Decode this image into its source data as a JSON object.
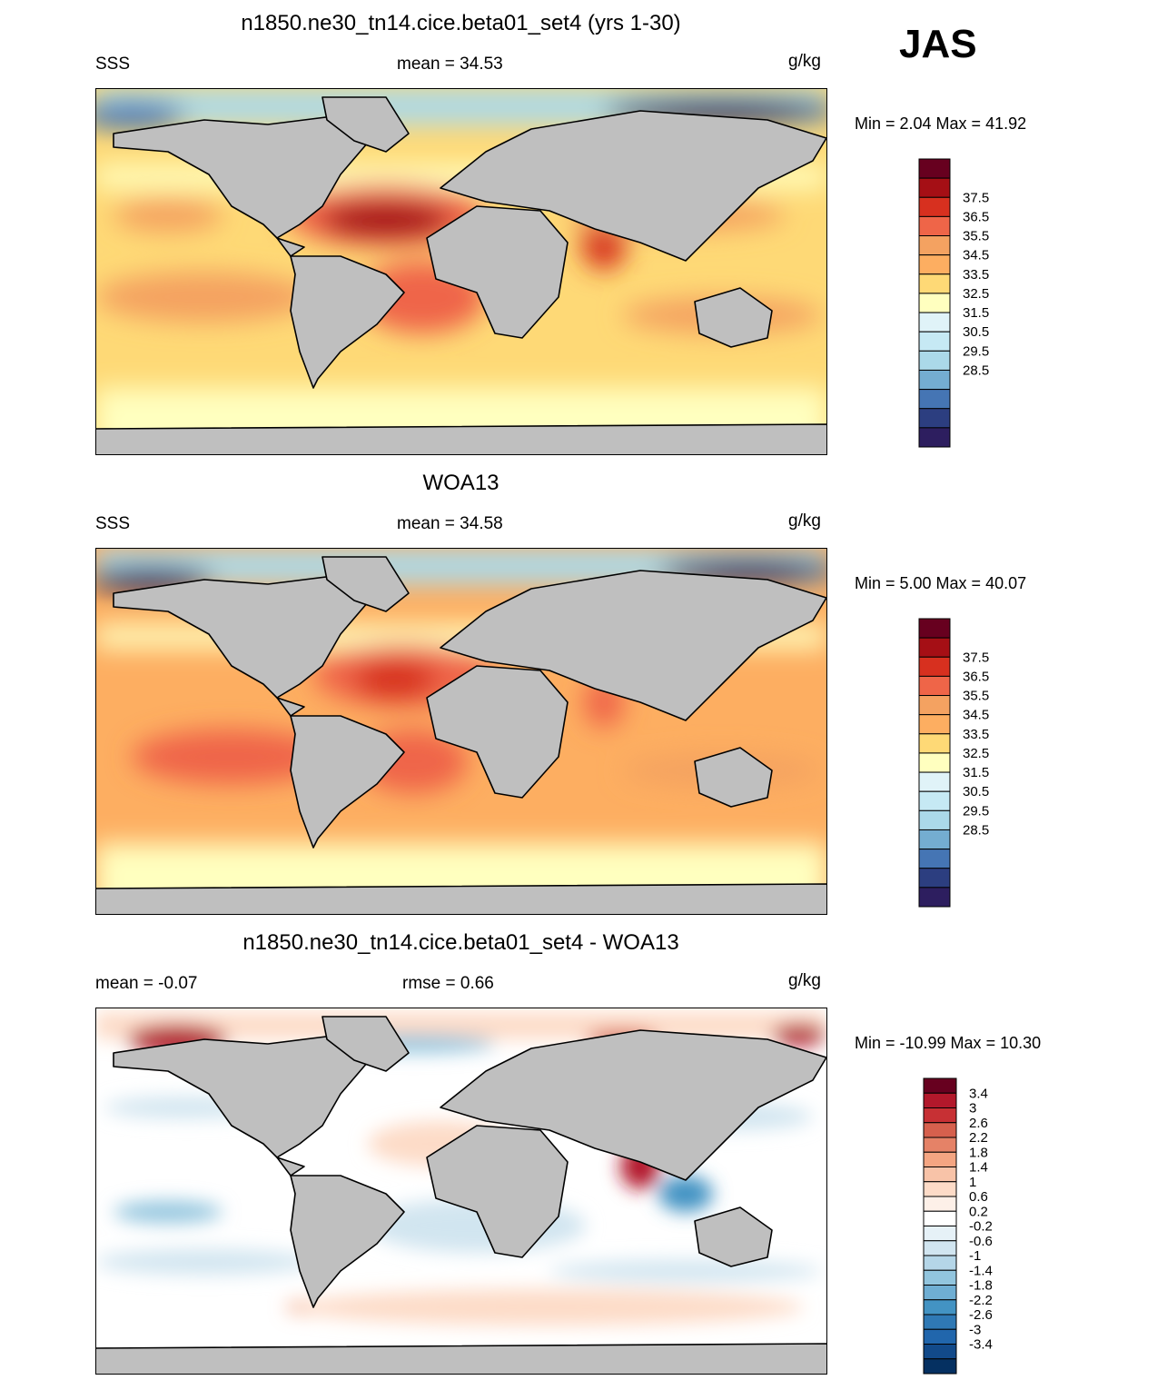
{
  "season": "JAS",
  "land_color": "#bfbfbf",
  "panels": [
    {
      "id": "model",
      "title": "n1850.ne30_tn14.cice.beta01_set4 (yrs 1-30)",
      "left": "SSS",
      "center": "mean =  34.53",
      "right": "g/kg",
      "minmax": "Min =   2.04 Max =  41.92",
      "kind": "abs"
    },
    {
      "id": "obs",
      "title": "WOA13",
      "left": "SSS",
      "center": "mean =  34.58",
      "right": "g/kg",
      "minmax": "Min =   5.00 Max =  40.07",
      "kind": "abs"
    },
    {
      "id": "diff",
      "title": "n1850.ne30_tn14.cice.beta01_set4 - WOA13",
      "left": "mean =  -0.07",
      "center": "rmse =   0.66",
      "right": "g/kg",
      "minmax": "Min = -10.99 Max =  10.30",
      "kind": "diff"
    }
  ],
  "colorbars": {
    "abs": {
      "colors": [
        "#67001f",
        "#a50f15",
        "#d7301f",
        "#ef6548",
        "#f4a261",
        "#fdae61",
        "#fed976",
        "#ffffbf",
        "#e0f3f8",
        "#c6e9f4",
        "#abd9e9",
        "#74add1",
        "#4575b4",
        "#2c3e80",
        "#2d1e5f"
      ],
      "labels": [
        "37.5",
        "36.5",
        "35.5",
        "34.5",
        "33.5",
        "32.5",
        "31.5",
        "30.5",
        "29.5",
        "28.5"
      ]
    },
    "diff": {
      "colors": [
        "#67001f",
        "#b2182b",
        "#c73034",
        "#d6604d",
        "#e58267",
        "#f4a582",
        "#f8c3a8",
        "#fddbc7",
        "#fdf0e8",
        "#ffffff",
        "#e6f1f7",
        "#d1e5f0",
        "#b5d6e8",
        "#92c5de",
        "#6faed3",
        "#4393c3",
        "#2f79b5",
        "#2166ac",
        "#124a8a",
        "#053061"
      ],
      "labels": [
        "3.4",
        "3",
        "2.6",
        "2.2",
        "1.8",
        "1.4",
        "1",
        "0.6",
        "0.2",
        "-0.2",
        "-0.6",
        "-1",
        "-1.4",
        "-1.8",
        "-2.2",
        "-2.6",
        "-3",
        "-3.4"
      ]
    }
  }
}
